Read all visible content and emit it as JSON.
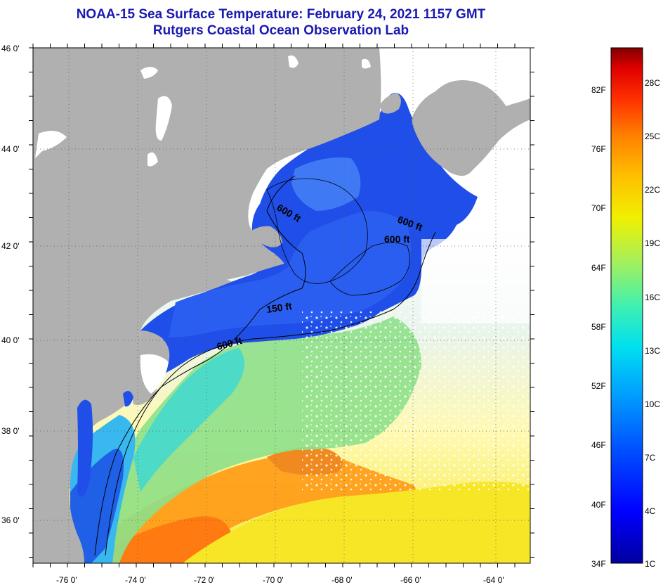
{
  "title": "NOAA-15 Sea Surface Temperature:  February 24, 2021 1157 GMT",
  "subtitle": "Rutgers Coastal Ocean Observation Lab",
  "map": {
    "lat_labels": [
      "46 0'",
      "44 0'",
      "42 0'",
      "40 0'",
      "38 0'",
      "36 0'"
    ],
    "lon_labels": [
      "-76 0'",
      "-74 0'",
      "-72 0'",
      "-70 0'",
      "-68 0'",
      "-66 0'",
      "-64 0'"
    ],
    "depth_labels": [
      "600 ft",
      "600 ft",
      "600 ft",
      "150 ft",
      "600 ft"
    ],
    "land_color": "#b0b0b0",
    "cloud_color": "#ffffff"
  },
  "colorbar": {
    "fahrenheit_labels": [
      "82F",
      "76F",
      "70F",
      "64F",
      "58F",
      "52F",
      "46F",
      "40F",
      "34F"
    ],
    "celsius_labels": [
      "28C",
      "25C",
      "22C",
      "19C",
      "16C",
      "13C",
      "10C",
      "7C",
      "4C",
      "1C"
    ],
    "stops": [
      "#0000a0",
      "#0000ff",
      "#0050ff",
      "#00a0ff",
      "#00e0f0",
      "#40f0b0",
      "#a0f060",
      "#f0f000",
      "#ffc000",
      "#ff8000",
      "#ff3000",
      "#e00000",
      "#800000"
    ]
  }
}
